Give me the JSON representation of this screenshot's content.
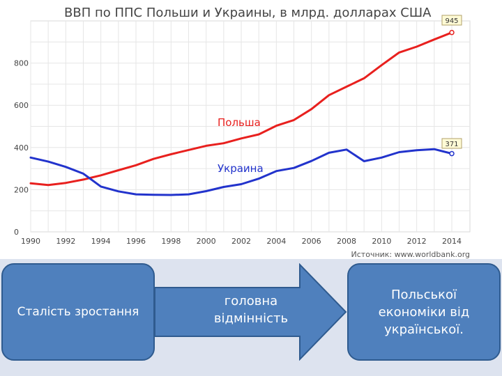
{
  "chart_data": {
    "type": "line",
    "title": "ВВП по ППС Польши и Украины, в млрд. долларах США",
    "x": [
      1990,
      1991,
      1992,
      1993,
      1994,
      1995,
      1996,
      1997,
      1998,
      1999,
      2000,
      2001,
      2002,
      2003,
      2004,
      2005,
      2006,
      2007,
      2008,
      2009,
      2010,
      2011,
      2012,
      2013,
      2014
    ],
    "x_ticks": [
      "1990",
      "1992",
      "1994",
      "1996",
      "1998",
      "2000",
      "2002",
      "2004",
      "2006",
      "2008",
      "2010",
      "2012",
      "2014"
    ],
    "y_ticks": [
      "0",
      "200",
      "400",
      "600",
      "800"
    ],
    "ylim": [
      0,
      1000
    ],
    "grid": true,
    "series": [
      {
        "name": "Польша",
        "color": "#e8201e",
        "values": [
          230,
          222,
          232,
          248,
          268,
          292,
          316,
          346,
          368,
          388,
          408,
          420,
          443,
          462,
          503,
          530,
          582,
          648,
          688,
          728,
          790,
          850,
          878,
          912,
          945
        ],
        "end_label": "945"
      },
      {
        "name": "Украина",
        "color": "#2233cc",
        "values": [
          352,
          333,
          308,
          276,
          215,
          192,
          178,
          176,
          175,
          178,
          193,
          213,
          226,
          252,
          288,
          303,
          336,
          375,
          390,
          335,
          352,
          378,
          387,
          392,
          371
        ],
        "end_label": "371"
      }
    ],
    "source": "Источник: www.worldbank.org"
  },
  "diagram": {
    "left_box": "Сталість зростання",
    "arrow_label": "головна відмінність",
    "right_box": "Польської економіки від української.",
    "colors": {
      "box_fill": "#4f80bd",
      "box_border": "#2f5b8f",
      "background": "#dde3ef"
    }
  }
}
